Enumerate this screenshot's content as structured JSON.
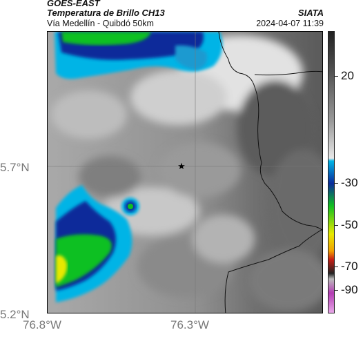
{
  "header": {
    "satellite": "GOES-EAST",
    "product": "Temperatura de Brillo CH13",
    "route": "Vía Medellín - Quibdó 50km",
    "organization": "SIATA",
    "timestamp": "2024-04-07 11:39"
  },
  "map": {
    "lat_labels": [
      "5.7°N",
      "5.2°N"
    ],
    "lon_labels": [
      "76.8°W",
      "76.3°W"
    ],
    "marker_icon": "star-icon"
  },
  "colorbar": {
    "labels": [
      "20",
      "-30",
      "-50",
      "-70",
      "-90"
    ],
    "colors": {
      "warm_gray_dark": "#3a3a3a",
      "cold_cyan": "#00b4e6",
      "cold_blue": "#0a2a9a",
      "cold_green": "#10c020",
      "cold_yellow": "#e8e800",
      "cold_red": "#c81e14",
      "cold_magenta": "#b43cb4"
    }
  }
}
